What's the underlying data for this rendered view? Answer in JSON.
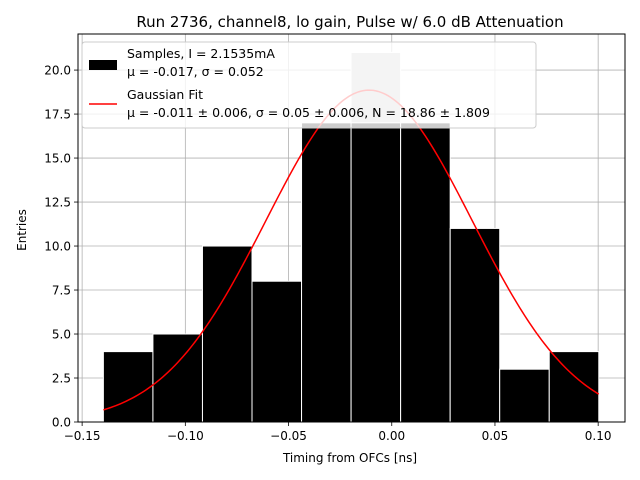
{
  "chart_data": {
    "type": "bar",
    "title": "Run 2736, channel8, lo gain, Pulse w/ 6.0 dB Attenuation",
    "xlabel": "Timing from OFCs [ns]",
    "ylabel": "Entries",
    "xlim": [
      -0.152,
      0.113
    ],
    "ylim": [
      0,
      22.05
    ],
    "grid": true,
    "legend_position": "top-left",
    "histogram": {
      "name": "Samples, I = 2.1535mA",
      "stats_label": "μ = -0.017, σ = 0.052",
      "bin_edges": [
        -0.1397,
        -0.1157,
        -0.0917,
        -0.0677,
        -0.0437,
        -0.0197,
        0.0043,
        0.0283,
        0.0523,
        0.0763,
        0.1003
      ],
      "counts": [
        4,
        5,
        10,
        8,
        17,
        21,
        17,
        11,
        3,
        4
      ],
      "color": "#000000",
      "edge_color": "#ffffff",
      "highlight": {
        "index": 5,
        "cap_from": 17,
        "color": "#c8c8c8"
      }
    },
    "fit": {
      "name": "Gaussian Fit",
      "params_label": "μ = -0.011 ± 0.006, σ = 0.05 ± 0.006, N = 18.86 ± 1.809",
      "mu": -0.011,
      "sigma": 0.05,
      "N": 18.86,
      "x_range": [
        -0.1397,
        0.1003
      ],
      "color": "#ff0000"
    },
    "x_ticks": [
      -0.15,
      -0.1,
      -0.05,
      0.0,
      0.05,
      0.1
    ],
    "x_tick_labels": [
      "−0.15",
      "−0.10",
      "−0.05",
      "0.00",
      "0.05",
      "0.10"
    ],
    "y_ticks": [
      0,
      2.5,
      5,
      7.5,
      10,
      12.5,
      15,
      17.5,
      20
    ],
    "y_tick_labels": [
      "0.0",
      "2.5",
      "5.0",
      "7.5",
      "10.0",
      "12.5",
      "15.0",
      "17.5",
      "20.0"
    ]
  }
}
